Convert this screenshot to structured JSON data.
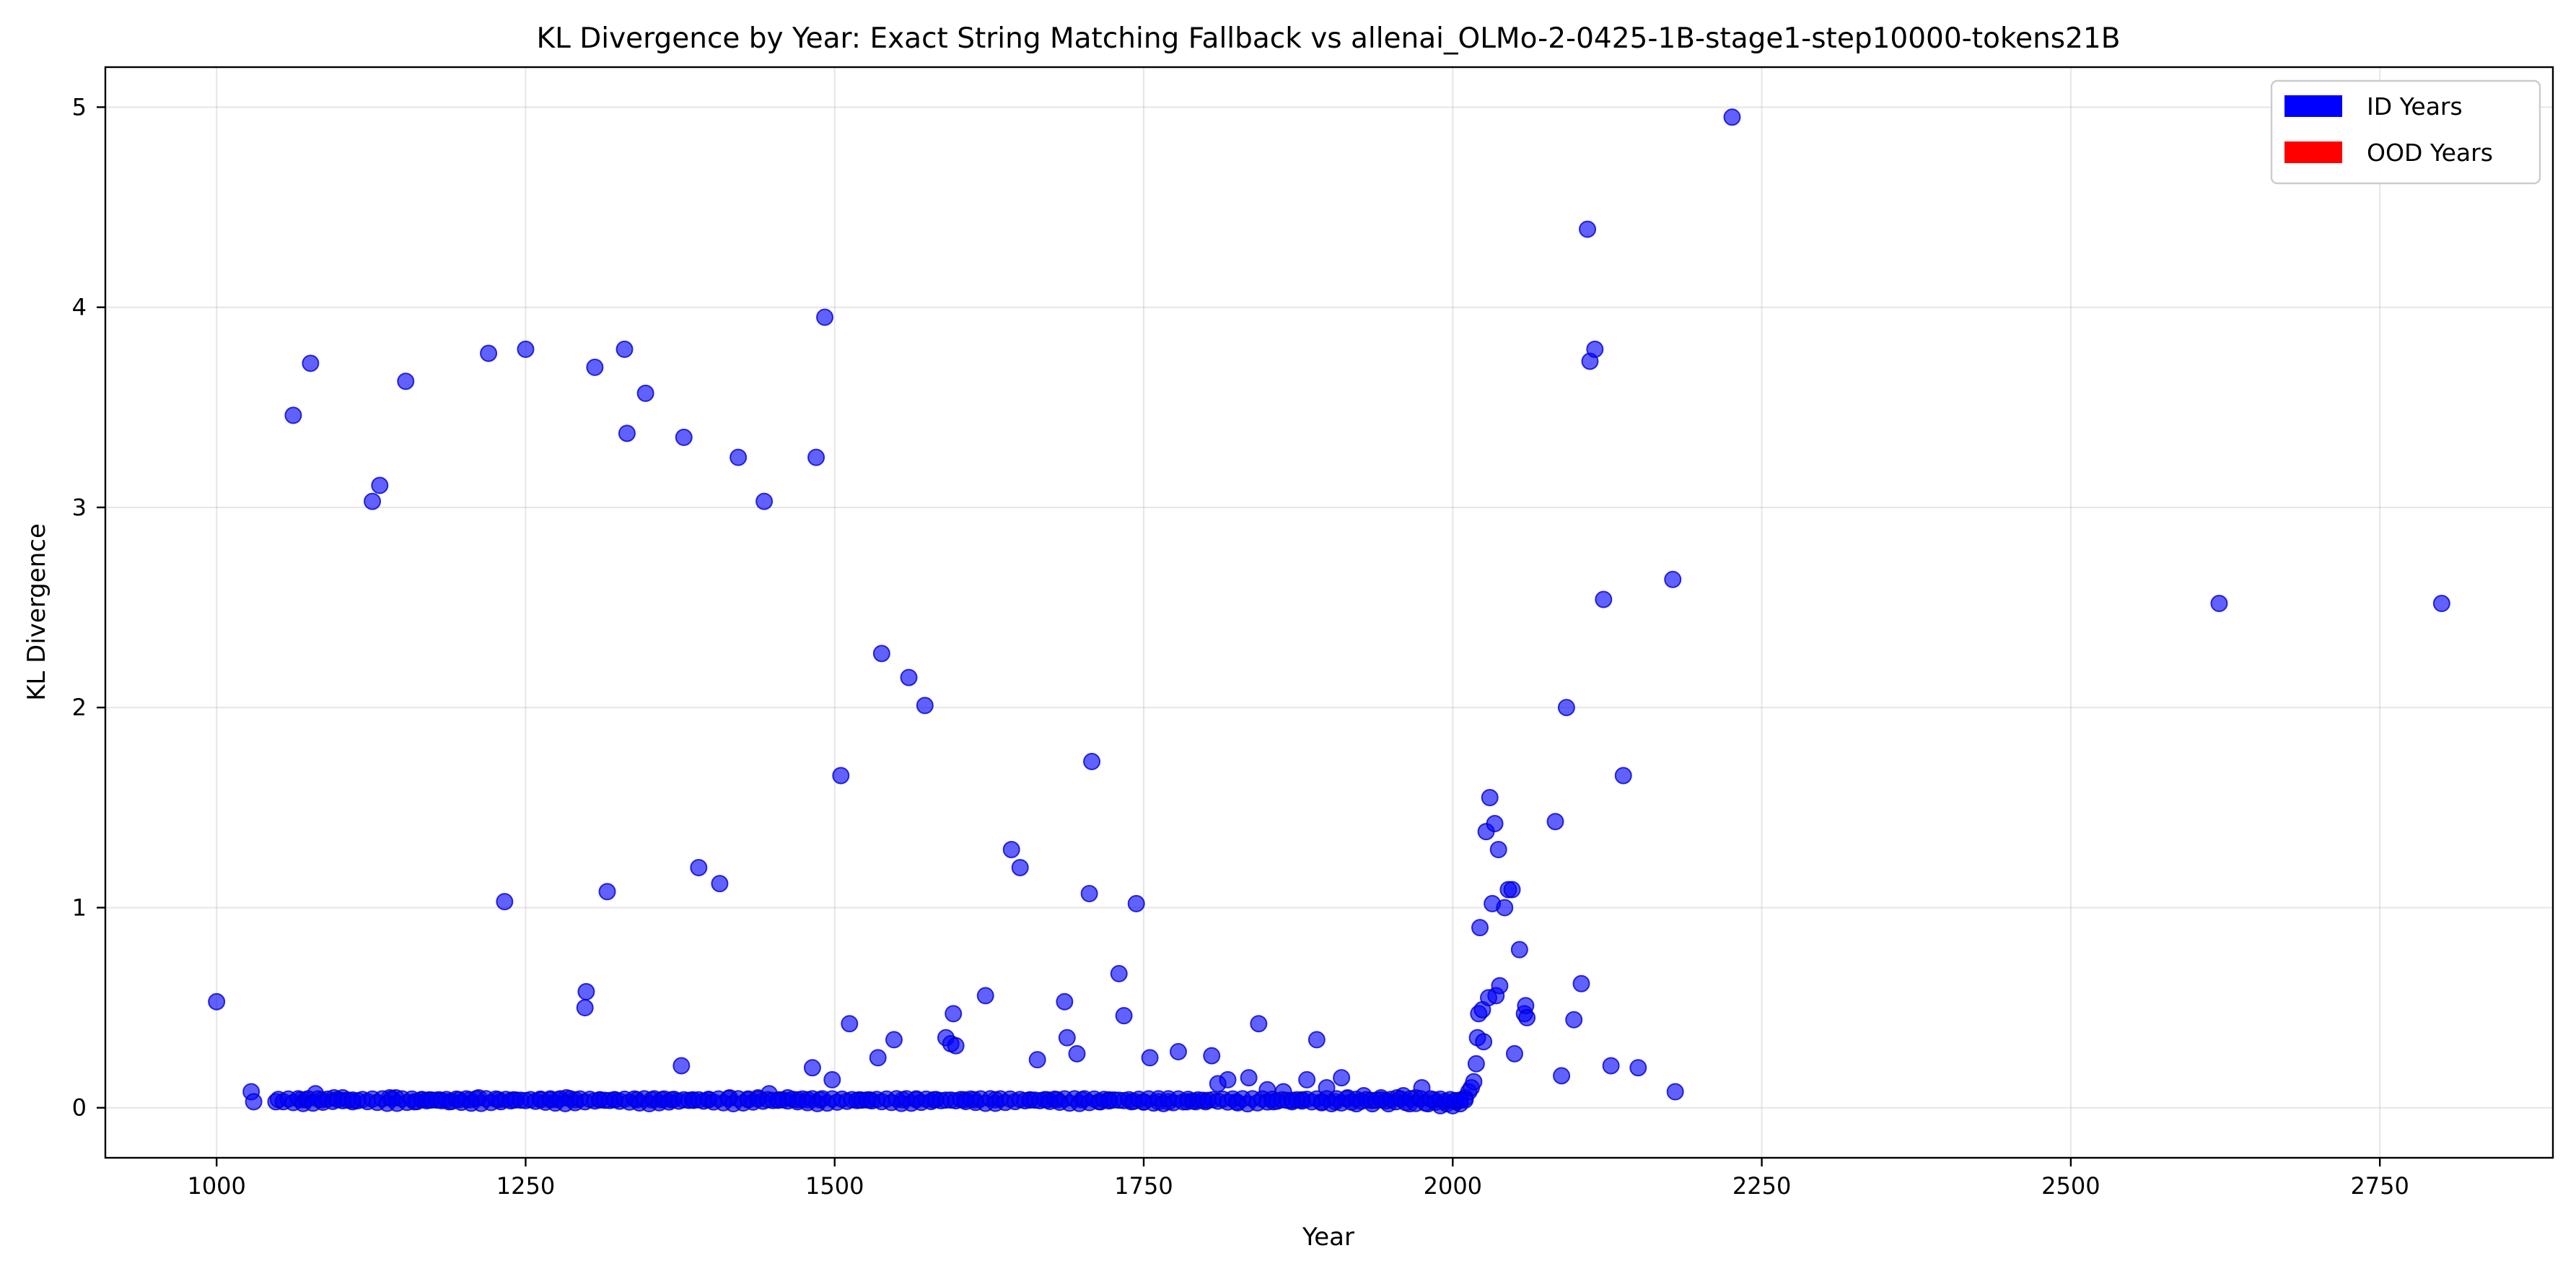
{
  "chart_data": {
    "type": "scatter",
    "title": "KL Divergence by Year: Exact String Matching Fallback vs allenai_OLMo-2-0425-1B-stage1-step10000-tokens21B",
    "xlabel": "Year",
    "ylabel": "KL Divergence",
    "xlim": [
      910,
      2890
    ],
    "ylim": [
      -0.25,
      5.2
    ],
    "xticks": [
      1000,
      1250,
      1500,
      1750,
      2000,
      2250,
      2500,
      2750
    ],
    "yticks": [
      0,
      1,
      2,
      3,
      4,
      5
    ],
    "grid": true,
    "legend_position": "top-right",
    "legend": [
      {
        "label": "ID Years",
        "color": "#0000ff"
      },
      {
        "label": "OOD Years",
        "color": "#ff0000"
      }
    ],
    "series": [
      {
        "color": "#0000ff",
        "points": [
          [
            1000,
            0.53
          ],
          [
            1028,
            0.08
          ],
          [
            1030,
            0.03
          ],
          [
            1048,
            0.03
          ],
          [
            1062,
            3.46
          ],
          [
            1068,
            0.04
          ],
          [
            1072,
            0.04
          ],
          [
            1076,
            3.72
          ],
          [
            1080,
            0.07
          ],
          [
            1085,
            0.04
          ],
          [
            1095,
            0.05
          ],
          [
            1102,
            0.05
          ],
          [
            1110,
            0.03
          ],
          [
            1126,
            3.03
          ],
          [
            1132,
            3.11
          ],
          [
            1140,
            0.05
          ],
          [
            1145,
            0.05
          ],
          [
            1153,
            3.63
          ],
          [
            1160,
            0.03
          ],
          [
            1166,
            0.04
          ],
          [
            1172,
            0.04
          ],
          [
            1180,
            0.04
          ],
          [
            1188,
            0.03
          ],
          [
            1196,
            0.04
          ],
          [
            1205,
            0.04
          ],
          [
            1212,
            0.05
          ],
          [
            1220,
            3.77
          ],
          [
            1228,
            0.04
          ],
          [
            1233,
            1.03
          ],
          [
            1240,
            0.04
          ],
          [
            1250,
            3.79
          ],
          [
            1262,
            0.04
          ],
          [
            1270,
            0.04
          ],
          [
            1276,
            0.04
          ],
          [
            1283,
            0.05
          ],
          [
            1290,
            0.04
          ],
          [
            1298,
            0.5
          ],
          [
            1299,
            0.58
          ],
          [
            1306,
            3.7
          ],
          [
            1310,
            0.04
          ],
          [
            1316,
            1.08
          ],
          [
            1322,
            0.04
          ],
          [
            1330,
            3.79
          ],
          [
            1332,
            3.37
          ],
          [
            1340,
            0.04
          ],
          [
            1347,
            3.57
          ],
          [
            1352,
            0.04
          ],
          [
            1360,
            0.04
          ],
          [
            1368,
            0.04
          ],
          [
            1376,
            0.21
          ],
          [
            1378,
            3.35
          ],
          [
            1385,
            0.04
          ],
          [
            1390,
            1.2
          ],
          [
            1398,
            0.04
          ],
          [
            1407,
            1.12
          ],
          [
            1415,
            0.05
          ],
          [
            1422,
            3.25
          ],
          [
            1430,
            0.04
          ],
          [
            1438,
            0.05
          ],
          [
            1443,
            3.03
          ],
          [
            1447,
            0.07
          ],
          [
            1455,
            0.04
          ],
          [
            1462,
            0.05
          ],
          [
            1470,
            0.04
          ],
          [
            1478,
            0.04
          ],
          [
            1482,
            0.2
          ],
          [
            1485,
            3.25
          ],
          [
            1488,
            0.04
          ],
          [
            1492,
            3.95
          ],
          [
            1498,
            0.14
          ],
          [
            1505,
            1.66
          ],
          [
            1512,
            0.42
          ],
          [
            1520,
            0.04
          ],
          [
            1528,
            0.04
          ],
          [
            1535,
            0.25
          ],
          [
            1538,
            2.27
          ],
          [
            1548,
            0.34
          ],
          [
            1555,
            0.04
          ],
          [
            1560,
            2.15
          ],
          [
            1566,
            0.04
          ],
          [
            1573,
            2.01
          ],
          [
            1580,
            0.04
          ],
          [
            1590,
            0.35
          ],
          [
            1594,
            0.32
          ],
          [
            1596,
            0.47
          ],
          [
            1598,
            0.31
          ],
          [
            1605,
            0.04
          ],
          [
            1613,
            0.04
          ],
          [
            1622,
            0.56
          ],
          [
            1630,
            0.04
          ],
          [
            1643,
            1.29
          ],
          [
            1650,
            1.2
          ],
          [
            1658,
            0.04
          ],
          [
            1664,
            0.24
          ],
          [
            1672,
            0.04
          ],
          [
            1680,
            0.04
          ],
          [
            1686,
            0.53
          ],
          [
            1688,
            0.35
          ],
          [
            1696,
            0.27
          ],
          [
            1700,
            0.04
          ],
          [
            1706,
            1.07
          ],
          [
            1708,
            1.73
          ],
          [
            1715,
            0.03
          ],
          [
            1722,
            0.04
          ],
          [
            1730,
            0.67
          ],
          [
            1734,
            0.46
          ],
          [
            1740,
            0.03
          ],
          [
            1744,
            1.02
          ],
          [
            1750,
            0.03
          ],
          [
            1755,
            0.25
          ],
          [
            1762,
            0.03
          ],
          [
            1770,
            0.03
          ],
          [
            1778,
            0.28
          ],
          [
            1785,
            0.03
          ],
          [
            1792,
            0.03
          ],
          [
            1800,
            0.03
          ],
          [
            1805,
            0.26
          ],
          [
            1810,
            0.12
          ],
          [
            1818,
            0.14
          ],
          [
            1825,
            0.03
          ],
          [
            1835,
            0.15
          ],
          [
            1843,
            0.42
          ],
          [
            1850,
            0.09
          ],
          [
            1855,
            0.03
          ],
          [
            1863,
            0.08
          ],
          [
            1870,
            0.03
          ],
          [
            1878,
            0.04
          ],
          [
            1882,
            0.14
          ],
          [
            1890,
            0.34
          ],
          [
            1894,
            0.03
          ],
          [
            1898,
            0.1
          ],
          [
            1905,
            0.03
          ],
          [
            1910,
            0.15
          ],
          [
            1915,
            0.05
          ],
          [
            1922,
            0.02
          ],
          [
            1928,
            0.06
          ],
          [
            1935,
            0.02
          ],
          [
            1942,
            0.05
          ],
          [
            1948,
            0.02
          ],
          [
            1955,
            0.05
          ],
          [
            1960,
            0.06
          ],
          [
            1965,
            0.02
          ],
          [
            1970,
            0.05
          ],
          [
            1975,
            0.1
          ],
          [
            1980,
            0.02
          ],
          [
            1985,
            0.04
          ],
          [
            1990,
            0.01
          ],
          [
            1995,
            0.02
          ],
          [
            2000,
            0.01
          ],
          [
            2003,
            0.03
          ],
          [
            2006,
            0.02
          ],
          [
            2010,
            0.05
          ],
          [
            2013,
            0.08
          ],
          [
            2015,
            0.1
          ],
          [
            2017,
            0.13
          ],
          [
            2019,
            0.22
          ],
          [
            2020,
            0.35
          ],
          [
            2021,
            0.47
          ],
          [
            2022,
            0.9
          ],
          [
            2024,
            0.49
          ],
          [
            2025,
            0.33
          ],
          [
            2027,
            1.38
          ],
          [
            2029,
            0.55
          ],
          [
            2030,
            1.55
          ],
          [
            2032,
            1.02
          ],
          [
            2034,
            1.42
          ],
          [
            2035,
            0.56
          ],
          [
            2037,
            1.29
          ],
          [
            2038,
            0.61
          ],
          [
            2042,
            1.0
          ],
          [
            2045,
            1.09
          ],
          [
            2048,
            1.09
          ],
          [
            2050,
            0.27
          ],
          [
            2054,
            0.79
          ],
          [
            2058,
            0.47
          ],
          [
            2059,
            0.51
          ],
          [
            2060,
            0.45
          ],
          [
            2083,
            1.43
          ],
          [
            2088,
            0.16
          ],
          [
            2092,
            2.0
          ],
          [
            2098,
            0.44
          ],
          [
            2104,
            0.62
          ],
          [
            2109,
            4.39
          ],
          [
            2111,
            3.73
          ],
          [
            2115,
            3.79
          ],
          [
            2122,
            2.54
          ],
          [
            2128,
            0.21
          ],
          [
            2138,
            1.66
          ],
          [
            2150,
            0.2
          ],
          [
            2178,
            2.64
          ],
          [
            2180,
            0.08
          ],
          [
            2226,
            4.95
          ],
          [
            2620,
            2.52
          ],
          [
            2800,
            2.52
          ]
        ]
      }
    ]
  }
}
